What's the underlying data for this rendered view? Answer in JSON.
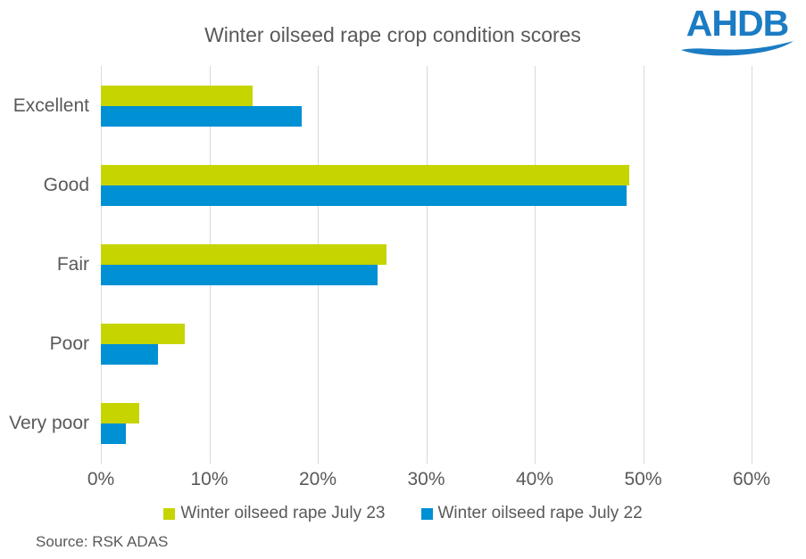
{
  "title": "Winter oilseed rape crop condition scores",
  "logo": {
    "text": "AHDB",
    "color": "#1b7cc4"
  },
  "source": "Source: RSK ADAS",
  "chart_data": {
    "type": "bar",
    "orientation": "horizontal",
    "title": "Winter oilseed rape crop condition scores",
    "categories": [
      "Excellent",
      "Good",
      "Fair",
      "Poor",
      "Very poor"
    ],
    "series": [
      {
        "name": "Winter oilseed rape July 23",
        "color": "#c6d400",
        "values": [
          14,
          48.7,
          26.3,
          7.7,
          3.5
        ]
      },
      {
        "name": "Winter oilseed rape July 22",
        "color": "#0090d4",
        "values": [
          18.5,
          48.5,
          25.5,
          5.3,
          2.3
        ]
      }
    ],
    "xlabel": "",
    "ylabel": "",
    "xlim": [
      0,
      60
    ],
    "x_ticks": [
      "0%",
      "10%",
      "20%",
      "30%",
      "40%",
      "50%",
      "60%"
    ],
    "x_tick_values": [
      0,
      10,
      20,
      30,
      40,
      50,
      60
    ],
    "grid": "vertical-gridlines-on",
    "gridline_color": "#d9d9d9",
    "text_color": "#595959",
    "legend_position": "bottom",
    "source": "Source: RSK ADAS"
  }
}
